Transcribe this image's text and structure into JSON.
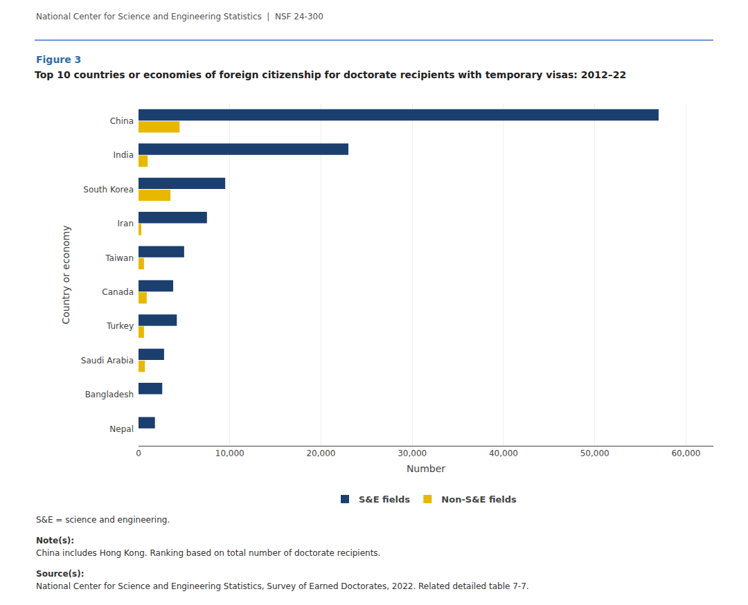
{
  "chart_data": {
    "type": "bar",
    "orientation": "horizontal",
    "title": "Top 10 countries or economies of foreign citizenship for doctorate recipients with temporary visas: 2012–22",
    "xlabel": "Number",
    "ylabel": "Country or economy",
    "categories": [
      "China",
      "India",
      "South Korea",
      "Iran",
      "Taiwan",
      "Canada",
      "Turkey",
      "Saudi Arabia",
      "Bangladesh",
      "Nepal"
    ],
    "series": [
      {
        "name": "S&E fields",
        "color": "#1B3F6E",
        "values": [
          57000,
          23000,
          9500,
          7500,
          5000,
          3800,
          4200,
          2800,
          2600,
          1800
        ]
      },
      {
        "name": "Non-S&E fields",
        "color": "#E8B800",
        "values": [
          4500,
          1000,
          3500,
          300,
          600,
          900,
          600,
          700,
          0,
          0
        ]
      }
    ],
    "xlim": [
      0,
      63000
    ],
    "xticks": [
      0,
      {
        "value": 10000,
        "label": "10,000"
      },
      {
        "value": 20000,
        "label": "20,000"
      },
      {
        "value": 30000,
        "label": "30,000"
      },
      {
        "value": 40000,
        "label": "40,000"
      },
      {
        "value": 50000,
        "label": "50,000"
      },
      {
        "value": 60000,
        "label": "60,000"
      }
    ],
    "grid": true,
    "legend": "bottom",
    "annotations": [
      "National Center for Science and Engineering Statistics  |  NSF 24-300",
      "Figure 3",
      "S&E = science and engineering.",
      "Note(s):",
      "China includes Hong Kong. Ranking based on total number of doctorate recipients.",
      "Source(s):",
      "National Center for Science and Engineering Statistics, Survey of Earned Doctorates, 2022. Related detailed table 7-7."
    ]
  }
}
